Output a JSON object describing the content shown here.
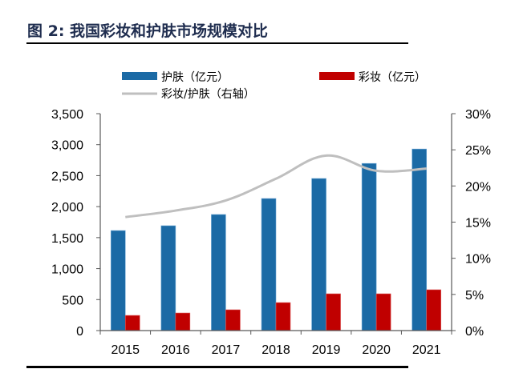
{
  "figure": {
    "title": "图 2: 我国彩妆和护肤市场规模对比"
  },
  "chart_data": {
    "type": "bar",
    "title": "图 2: 我国彩妆和护肤市场规模对比",
    "categories": [
      "2015",
      "2016",
      "2017",
      "2018",
      "2019",
      "2020",
      "2021"
    ],
    "series": [
      {
        "name": "护肤（亿元）",
        "type": "bar",
        "axis": "left",
        "color": "#1b6aa5",
        "values": [
          1614,
          1692,
          1873,
          2131,
          2454,
          2697,
          2930
        ]
      },
      {
        "name": "彩妆（亿元）",
        "type": "bar",
        "axis": "left",
        "color": "#c00000",
        "values": [
          245,
          284,
          336,
          452,
          594,
          594,
          659
        ]
      },
      {
        "name": "彩妆/护肤（右轴）",
        "type": "line",
        "axis": "right",
        "color": "#bfbfbf",
        "values": [
          0.157,
          0.166,
          0.18,
          0.21,
          0.242,
          0.221,
          0.224
        ]
      }
    ],
    "left_axis": {
      "ylim": [
        0,
        3500
      ],
      "ticks": [
        0,
        500,
        1000,
        1500,
        2000,
        2500,
        3000,
        3500
      ],
      "tick_labels": [
        "0",
        "500",
        "1,000",
        "1,500",
        "2,000",
        "2,500",
        "3,000",
        "3,500"
      ]
    },
    "right_axis": {
      "ylim": [
        0,
        0.3
      ],
      "ticks": [
        0,
        0.05,
        0.1,
        0.15,
        0.2,
        0.25,
        0.3
      ],
      "tick_labels": [
        "0%",
        "5%",
        "10%",
        "15%",
        "20%",
        "25%",
        "30%"
      ]
    },
    "xlabel": "",
    "ylabel": "",
    "grid": false,
    "legend": {
      "placement": "top",
      "entries": [
        "护肤（亿元）",
        "彩妆（亿元）",
        "彩妆/护肤（右轴）"
      ]
    }
  }
}
